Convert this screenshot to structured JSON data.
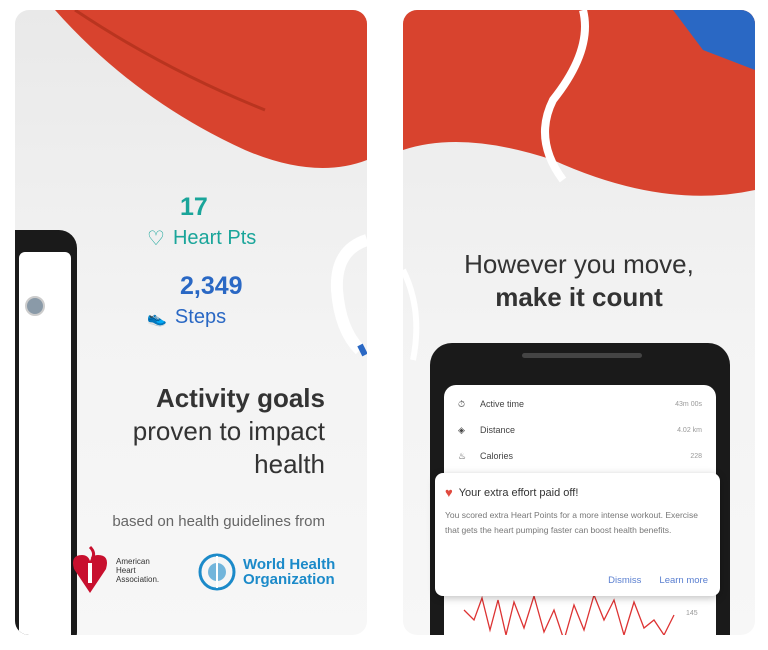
{
  "left": {
    "heart_pts_value": "17",
    "heart_pts_label": "Heart Pts",
    "steps_value": "2,349",
    "steps_label": "Steps",
    "headline_bold": "Activity goals",
    "headline_line2": "proven to impact",
    "headline_line3": "health",
    "source_text": "based on health guidelines from",
    "logos": {
      "aha": "American Heart Association.",
      "who_line1": "World Health",
      "who_line2": "Organization"
    }
  },
  "right": {
    "headline_line1": "However you move,",
    "headline_bold": "make it count",
    "stats": [
      {
        "label": "Active time",
        "value": "43m 00s",
        "icon": "timer-icon"
      },
      {
        "label": "Distance",
        "value": "4.02 km",
        "icon": "location-icon"
      },
      {
        "label": "Calories",
        "value": "228",
        "icon": "flame-icon"
      }
    ],
    "notification": {
      "title": "Your extra effort paid off!",
      "body": "You scored extra Heart Points for a more intense workout. Exercise that gets the heart pumping faster can boost health benefits.",
      "dismiss": "Dismiss",
      "learn_more": "Learn more"
    },
    "chart_label": "145"
  },
  "colors": {
    "teal": "#1aa59a",
    "blue": "#2a68c4",
    "shoe_red": "#d8432e",
    "aha_red": "#c8102e",
    "who_blue": "#1b8ac9"
  }
}
